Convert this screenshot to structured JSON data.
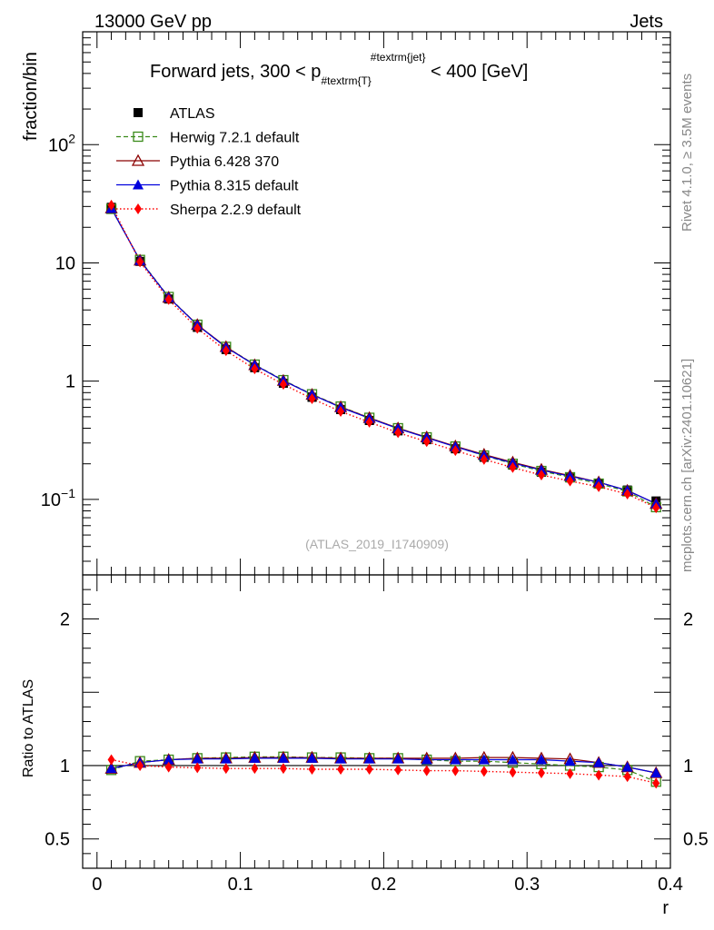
{
  "header": {
    "left": "13000 GeV pp",
    "right": "Jets"
  },
  "side_labels": {
    "rivet": "Rivet 4.1.0, ≥ 3.5M events",
    "mcplots": "mcplots.cern.ch [arXiv:2401.10621]"
  },
  "watermark": "(ATLAS_2019_I1740909)",
  "colors": {
    "atlas": "#000000",
    "herwig": "#3a8a1a",
    "pythia6": "#8b0000",
    "pythia8": "#0000dd",
    "sherpa": "#ff0000"
  },
  "chart_data": [
    {
      "type": "line",
      "title": "Forward jets, 300 < p_{#textrm{T}}^{#textrm{jet}} < 400 [GeV]",
      "title_parts": {
        "pre": "Forward jets, 300 < p",
        "sub": "#textrm{T}",
        "sup": "#textrm{jet}",
        "post": " < 400 [GeV]"
      },
      "ylabel": "fraction/bin",
      "yscale": "log",
      "ylim": [
        0.023,
        900
      ],
      "xlim": [
        -0.01,
        0.4
      ],
      "yticks": [
        {
          "value": 100,
          "label": "10",
          "exp": "2"
        },
        {
          "value": 10,
          "label": "10",
          "exp": ""
        },
        {
          "value": 1,
          "label": "1",
          "exp": ""
        },
        {
          "value": 0.1,
          "label": "10",
          "exp": "−1"
        }
      ],
      "x": [
        0.01,
        0.03,
        0.05,
        0.07,
        0.09,
        0.11,
        0.13,
        0.15,
        0.17,
        0.19,
        0.21,
        0.23,
        0.25,
        0.27,
        0.29,
        0.31,
        0.33,
        0.35,
        0.37,
        0.39
      ],
      "legend": [
        "ATLAS",
        "Herwig 7.2.1 default",
        "Pythia 6.428 370",
        "Pythia 8.315 default",
        "Sherpa 2.2.9 default"
      ],
      "series": [
        {
          "name": "ATLAS",
          "key": "atlas",
          "values": [
            29.5,
            10.3,
            4.95,
            2.85,
            1.85,
            1.3,
            0.96,
            0.73,
            0.575,
            0.465,
            0.38,
            0.32,
            0.268,
            0.227,
            0.195,
            0.17,
            0.152,
            0.137,
            0.12,
            0.097
          ]
        },
        {
          "name": "Herwig 7.2.1 default",
          "key": "herwig",
          "values": [
            28.6,
            10.6,
            5.15,
            3.0,
            1.95,
            1.38,
            1.02,
            0.775,
            0.61,
            0.49,
            0.4,
            0.335,
            0.28,
            0.235,
            0.2,
            0.174,
            0.154,
            0.136,
            0.117,
            0.086
          ]
        },
        {
          "name": "Pythia 6.428 370",
          "key": "pythia6",
          "values": [
            29.0,
            10.5,
            5.1,
            3.0,
            1.95,
            1.37,
            1.01,
            0.77,
            0.605,
            0.49,
            0.4,
            0.336,
            0.282,
            0.24,
            0.206,
            0.179,
            0.159,
            0.14,
            0.119,
            0.092
          ]
        },
        {
          "name": "Pythia 8.315 default",
          "key": "pythia8",
          "values": [
            28.9,
            10.5,
            5.1,
            2.98,
            1.93,
            1.37,
            1.01,
            0.77,
            0.6,
            0.485,
            0.397,
            0.333,
            0.279,
            0.236,
            0.203,
            0.177,
            0.157,
            0.14,
            0.119,
            0.092
          ]
        },
        {
          "name": "Sherpa 2.2.9 default",
          "key": "sherpa",
          "values": [
            30.8,
            10.2,
            4.9,
            2.8,
            1.81,
            1.27,
            0.94,
            0.71,
            0.555,
            0.45,
            0.367,
            0.308,
            0.259,
            0.218,
            0.186,
            0.161,
            0.143,
            0.128,
            0.111,
            0.085
          ]
        }
      ]
    },
    {
      "type": "line",
      "ylabel": "Ratio to ATLAS",
      "xlabel": "r",
      "ylim": [
        0.3,
        2.3
      ],
      "xlim": [
        -0.01,
        0.4
      ],
      "yticks": [
        {
          "value": 2,
          "label": "2"
        },
        {
          "value": 1,
          "label": "1"
        },
        {
          "value": 0.5,
          "label": "0.5"
        }
      ],
      "xticks": [
        {
          "value": 0,
          "label": "0"
        },
        {
          "value": 0.1,
          "label": "0.1"
        },
        {
          "value": 0.2,
          "label": "0.2"
        },
        {
          "value": 0.3,
          "label": "0.3"
        },
        {
          "value": 0.4,
          "label": "0.4"
        }
      ],
      "x": [
        0.01,
        0.03,
        0.05,
        0.07,
        0.09,
        0.11,
        0.13,
        0.15,
        0.17,
        0.19,
        0.21,
        0.23,
        0.25,
        0.27,
        0.29,
        0.31,
        0.33,
        0.35,
        0.37,
        0.39
      ],
      "series": [
        {
          "name": "Herwig 7.2.1 default",
          "key": "herwig",
          "values": [
            0.97,
            1.03,
            1.04,
            1.05,
            1.055,
            1.06,
            1.06,
            1.055,
            1.055,
            1.05,
            1.05,
            1.04,
            1.03,
            1.03,
            1.02,
            1.01,
            1.0,
            0.99,
            0.97,
            0.89
          ]
        },
        {
          "name": "Pythia 6.428 370",
          "key": "pythia6",
          "values": [
            0.98,
            1.02,
            1.04,
            1.05,
            1.05,
            1.055,
            1.055,
            1.055,
            1.05,
            1.05,
            1.05,
            1.05,
            1.05,
            1.055,
            1.055,
            1.05,
            1.045,
            1.02,
            0.99,
            0.95
          ]
        },
        {
          "name": "Pythia 8.315 default",
          "key": "pythia8",
          "values": [
            0.98,
            1.02,
            1.04,
            1.045,
            1.045,
            1.05,
            1.05,
            1.05,
            1.045,
            1.045,
            1.045,
            1.04,
            1.04,
            1.04,
            1.04,
            1.04,
            1.03,
            1.02,
            0.99,
            0.95
          ]
        },
        {
          "name": "Sherpa 2.2.9 default",
          "key": "sherpa",
          "values": [
            1.04,
            1.0,
            0.99,
            0.985,
            0.98,
            0.98,
            0.98,
            0.975,
            0.975,
            0.975,
            0.97,
            0.965,
            0.965,
            0.96,
            0.955,
            0.95,
            0.945,
            0.935,
            0.925,
            0.88
          ]
        }
      ]
    }
  ]
}
